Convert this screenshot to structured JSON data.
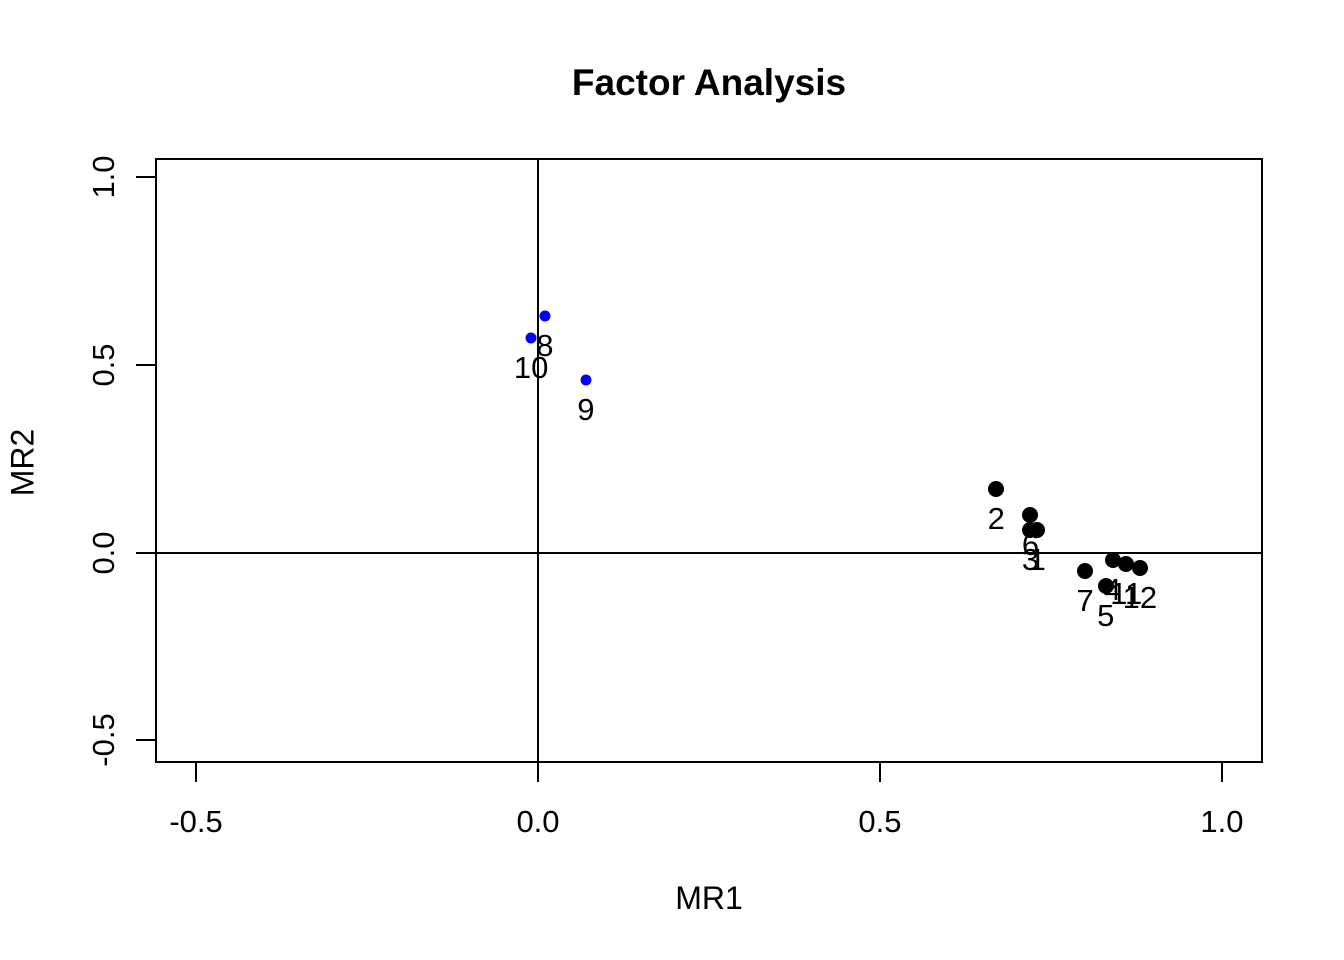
{
  "title": "Factor Analysis",
  "chart_data": {
    "type": "scatter",
    "title": "Factor Analysis",
    "xlabel": "MR1",
    "ylabel": "MR2",
    "xlim": [
      -0.56,
      1.06
    ],
    "ylim": [
      -0.56,
      1.05
    ],
    "x_ticks": [
      -0.5,
      0.0,
      0.5,
      1.0
    ],
    "x_tick_labels": [
      "-0.5",
      "0.0",
      "0.5",
      "1.0"
    ],
    "y_ticks": [
      -0.5,
      0.0,
      0.5,
      1.0
    ],
    "y_tick_labels": [
      "-0.5",
      "0.0",
      "0.5",
      "1.0"
    ],
    "grid": false,
    "reference_lines": {
      "vertical_at_x": 0.0,
      "horizontal_at_y": 0.0
    },
    "colors": {
      "black_points": "#000000",
      "blue_points": "#0000FF"
    },
    "points": [
      {
        "label": "1",
        "x": 0.73,
        "y": 0.06,
        "color": "#000000",
        "r": 8
      },
      {
        "label": "2",
        "x": 0.67,
        "y": 0.17,
        "color": "#000000",
        "r": 8
      },
      {
        "label": "3",
        "x": 0.72,
        "y": 0.06,
        "color": "#000000",
        "r": 8
      },
      {
        "label": "4",
        "x": 0.84,
        "y": -0.02,
        "color": "#000000",
        "r": 8
      },
      {
        "label": "5",
        "x": 0.83,
        "y": -0.09,
        "color": "#000000",
        "r": 8
      },
      {
        "label": "6",
        "x": 0.72,
        "y": 0.1,
        "color": "#000000",
        "r": 8
      },
      {
        "label": "7",
        "x": 0.8,
        "y": -0.05,
        "color": "#000000",
        "r": 8
      },
      {
        "label": "8",
        "x": 0.01,
        "y": 0.63,
        "color": "#0000FF",
        "r": 5.5
      },
      {
        "label": "9",
        "x": 0.07,
        "y": 0.46,
        "color": "#0000FF",
        "r": 5.5
      },
      {
        "label": "10",
        "x": -0.01,
        "y": 0.57,
        "color": "#0000FF",
        "r": 5.5
      },
      {
        "label": "11",
        "x": 0.86,
        "y": -0.03,
        "color": "#000000",
        "r": 8
      },
      {
        "label": "12",
        "x": 0.88,
        "y": -0.04,
        "color": "#000000",
        "r": 8
      }
    ]
  }
}
